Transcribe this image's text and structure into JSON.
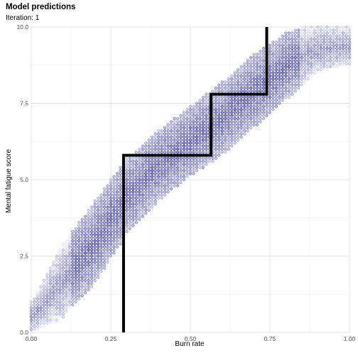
{
  "chart_data": {
    "type": "scatter",
    "title": "Model predictions",
    "subtitle": "Iteration: 1",
    "xlabel": "Burn rate",
    "ylabel": "Mental fatigue score",
    "xlim": [
      0.0,
      1.0
    ],
    "ylim": [
      0.0,
      10.0
    ],
    "x_ticks": [
      "0.00",
      "0.25",
      "0.50",
      "0.75",
      "1.00"
    ],
    "x_tick_values": [
      0.0,
      0.25,
      0.5,
      0.75,
      1.0
    ],
    "y_ticks": [
      "0.0",
      "2.5",
      "5.0",
      "7.5",
      "10.0"
    ],
    "y_tick_values": [
      0.0,
      2.5,
      5.0,
      7.5,
      10.0
    ],
    "grid": true,
    "point_color": "#1a1a80",
    "point_cloud": {
      "x_step": 0.01,
      "y_step": 0.1,
      "band_lower": [
        [
          0.0,
          0.0
        ],
        [
          0.1,
          0.5
        ],
        [
          0.2,
          1.6
        ],
        [
          0.3,
          3.2
        ],
        [
          0.4,
          4.3
        ],
        [
          0.5,
          5.1
        ],
        [
          0.6,
          5.8
        ],
        [
          0.7,
          6.7
        ],
        [
          0.8,
          7.6
        ],
        [
          0.9,
          8.5
        ],
        [
          1.0,
          8.8
        ]
      ],
      "band_upper": [
        [
          0.0,
          1.0
        ],
        [
          0.05,
          1.9
        ],
        [
          0.1,
          2.9
        ],
        [
          0.2,
          4.3
        ],
        [
          0.3,
          5.7
        ],
        [
          0.4,
          6.6
        ],
        [
          0.5,
          7.4
        ],
        [
          0.6,
          8.2
        ],
        [
          0.7,
          9.1
        ],
        [
          0.8,
          9.8
        ],
        [
          0.85,
          10.0
        ],
        [
          1.0,
          10.0
        ]
      ]
    },
    "prediction_step": {
      "x": [
        0.29,
        0.29,
        0.565,
        0.565,
        0.74,
        0.74
      ],
      "y": [
        0.0,
        5.8,
        5.8,
        7.8,
        7.8,
        10.0
      ],
      "color": "#000000"
    }
  }
}
